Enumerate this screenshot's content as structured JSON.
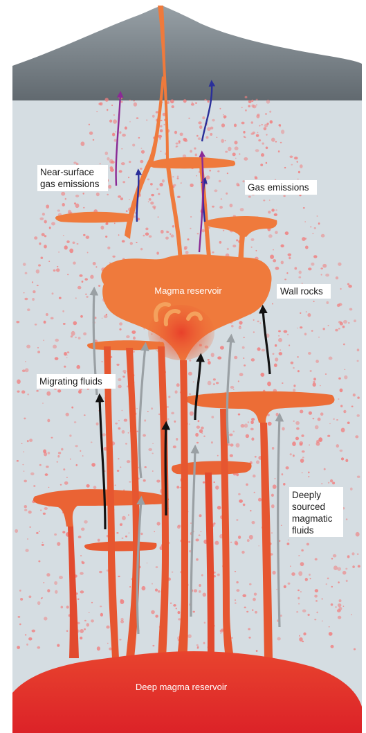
{
  "labels": {
    "near_surface_1": "Near-surface",
    "near_surface_2": "gas emissions",
    "gas_emissions": "Gas emissions",
    "magma_reservoir": "Magma reservoir",
    "wall_rocks": "Wall rocks",
    "migrating_fluids": "Migrating fluids",
    "deeply_1": "Deeply",
    "deeply_2": "sourced",
    "deeply_3": "magmatic",
    "deeply_4": "fluids",
    "deep_reservoir": "Deep magma reservoir"
  },
  "colors": {
    "background": "#d5dde2",
    "mountain": "#6b7278",
    "magma_upper": "#ef7a3c",
    "magma_lower": "#e0312b",
    "speckle": "#f08080",
    "arrow_black": "#111111",
    "arrow_grey": "#9aa0a4",
    "arrow_blue": "#2a2f9a",
    "arrow_purple": "#8a2a95"
  }
}
